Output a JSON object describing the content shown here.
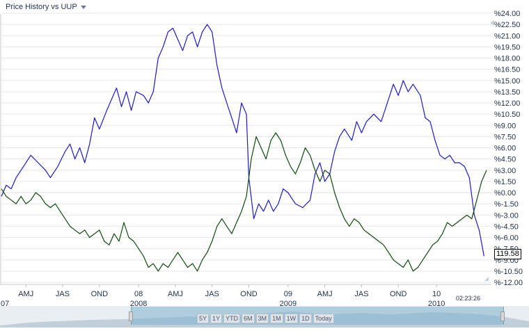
{
  "header": {
    "title": "Price History vs UUP"
  },
  "time_label": "02:23:26",
  "last_price": "119.58",
  "range_buttons": [
    "5Y",
    "1Y",
    "YTD",
    "6M",
    "3M",
    "1M",
    "1W",
    "1D",
    "Today"
  ],
  "colors": {
    "series_primary": "#1a1acc",
    "series_compare": "#0d4a0d",
    "grid": "#e6e6e6",
    "navigator": "#7db4cd"
  },
  "chart_data": {
    "type": "line",
    "title": "Price History vs UUP",
    "xlabel": "",
    "ylabel": "",
    "y_unit": "%",
    "ylim": [
      -12,
      24
    ],
    "y_ticks": [
      "%24.00",
      "%22.50",
      "%21.00",
      "%19.50",
      "%18.00",
      "%16.50",
      "%15.00",
      "%13.50",
      "%12.00",
      "%10.50",
      "%9.00",
      "%7.50",
      "%6.00",
      "%4.50",
      "%3.00",
      "%1.50",
      "%0.00",
      "%-1.50",
      "%-3.00",
      "%-4.50",
      "%-6.00",
      "%-7.50",
      "%-9.00",
      "%-10.50",
      "%-12.00"
    ],
    "x_ticks": [
      {
        "label": "07",
        "row": 2,
        "t": 0.0
      },
      {
        "label": "AMJ",
        "row": 1,
        "t": 0.05
      },
      {
        "label": "JAS",
        "row": 1,
        "t": 0.125
      },
      {
        "label": "OND",
        "row": 1,
        "t": 0.2
      },
      {
        "label": "08",
        "row": 1,
        "t": 0.28
      },
      {
        "label": "2008",
        "row": 2,
        "t": 0.28
      },
      {
        "label": "AMJ",
        "row": 1,
        "t": 0.355
      },
      {
        "label": "JAS",
        "row": 1,
        "t": 0.43
      },
      {
        "label": "OND",
        "row": 1,
        "t": 0.505
      },
      {
        "label": "09",
        "row": 1,
        "t": 0.585
      },
      {
        "label": "2009",
        "row": 2,
        "t": 0.585
      },
      {
        "label": "AMJ",
        "row": 1,
        "t": 0.66
      },
      {
        "label": "JAS",
        "row": 1,
        "t": 0.735
      },
      {
        "label": "OND",
        "row": 1,
        "t": 0.81
      },
      {
        "label": "10",
        "row": 1,
        "t": 0.888
      },
      {
        "label": "2010",
        "row": 2,
        "t": 0.888
      }
    ],
    "series": [
      {
        "color": "#1a1acc",
        "points": [
          [
            0,
            -0.5
          ],
          [
            0.01,
            1.0
          ],
          [
            0.02,
            0.5
          ],
          [
            0.03,
            2.0
          ],
          [
            0.045,
            3.5
          ],
          [
            0.06,
            5.0
          ],
          [
            0.075,
            4.0
          ],
          [
            0.09,
            3.0
          ],
          [
            0.1,
            2.0
          ],
          [
            0.115,
            3.5
          ],
          [
            0.13,
            5.5
          ],
          [
            0.14,
            6.5
          ],
          [
            0.15,
            4.5
          ],
          [
            0.16,
            6.0
          ],
          [
            0.17,
            4.0
          ],
          [
            0.18,
            6.5
          ],
          [
            0.19,
            10.0
          ],
          [
            0.2,
            8.5
          ],
          [
            0.215,
            11.0
          ],
          [
            0.225,
            12.5
          ],
          [
            0.235,
            14.0
          ],
          [
            0.245,
            11.5
          ],
          [
            0.255,
            13.5
          ],
          [
            0.265,
            11.0
          ],
          [
            0.275,
            13.5
          ],
          [
            0.29,
            13.0
          ],
          [
            0.3,
            12.0
          ],
          [
            0.31,
            13.5
          ],
          [
            0.32,
            18.0
          ],
          [
            0.33,
            19.5
          ],
          [
            0.34,
            21.5
          ],
          [
            0.35,
            22.0
          ],
          [
            0.36,
            20.5
          ],
          [
            0.37,
            19.0
          ],
          [
            0.38,
            21.0
          ],
          [
            0.39,
            21.5
          ],
          [
            0.4,
            19.5
          ],
          [
            0.41,
            21.5
          ],
          [
            0.42,
            22.5
          ],
          [
            0.43,
            21.5
          ],
          [
            0.44,
            17.0
          ],
          [
            0.45,
            14.0
          ],
          [
            0.46,
            12.0
          ],
          [
            0.47,
            10.0
          ],
          [
            0.48,
            8.0
          ],
          [
            0.49,
            12.0
          ],
          [
            0.5,
            10.5
          ],
          [
            0.505,
            2.0
          ],
          [
            0.515,
            -3.5
          ],
          [
            0.525,
            -1.5
          ],
          [
            0.535,
            -2.5
          ],
          [
            0.545,
            -1.0
          ],
          [
            0.555,
            -2.5
          ],
          [
            0.565,
            -1.5
          ],
          [
            0.575,
            0.5
          ],
          [
            0.585,
            0.0
          ],
          [
            0.6,
            -1.5
          ],
          [
            0.615,
            -2.0
          ],
          [
            0.63,
            -1.0
          ],
          [
            0.64,
            2.5
          ],
          [
            0.65,
            4.0
          ],
          [
            0.66,
            1.5
          ],
          [
            0.67,
            2.5
          ],
          [
            0.68,
            5.5
          ],
          [
            0.69,
            7.5
          ],
          [
            0.7,
            8.5
          ],
          [
            0.715,
            7.0
          ],
          [
            0.725,
            9.5
          ],
          [
            0.735,
            8.0
          ],
          [
            0.745,
            9.5
          ],
          [
            0.76,
            10.5
          ],
          [
            0.775,
            9.5
          ],
          [
            0.79,
            12.5
          ],
          [
            0.8,
            14.5
          ],
          [
            0.81,
            13.0
          ],
          [
            0.82,
            15.0
          ],
          [
            0.83,
            13.5
          ],
          [
            0.84,
            14.5
          ],
          [
            0.855,
            13.0
          ],
          [
            0.865,
            10.0
          ],
          [
            0.875,
            9.5
          ],
          [
            0.885,
            7.0
          ],
          [
            0.895,
            5.0
          ],
          [
            0.905,
            4.5
          ],
          [
            0.915,
            5.0
          ],
          [
            0.925,
            4.0
          ],
          [
            0.935,
            4.0
          ],
          [
            0.945,
            3.5
          ],
          [
            0.955,
            2.0
          ],
          [
            0.965,
            -3.0
          ],
          [
            0.975,
            -5.0
          ],
          [
            0.985,
            -8.5
          ]
        ]
      },
      {
        "color": "#0d4a0d",
        "points": [
          [
            0,
            0.5
          ],
          [
            0.01,
            -0.5
          ],
          [
            0.02,
            -1.0
          ],
          [
            0.03,
            -1.5
          ],
          [
            0.04,
            -0.5
          ],
          [
            0.05,
            -1.5
          ],
          [
            0.06,
            -1.0
          ],
          [
            0.07,
            0.0
          ],
          [
            0.08,
            -0.5
          ],
          [
            0.09,
            -1.5
          ],
          [
            0.1,
            -2.0
          ],
          [
            0.11,
            -1.5
          ],
          [
            0.12,
            -2.5
          ],
          [
            0.13,
            -3.5
          ],
          [
            0.14,
            -4.5
          ],
          [
            0.15,
            -5.0
          ],
          [
            0.16,
            -5.5
          ],
          [
            0.17,
            -5.0
          ],
          [
            0.18,
            -6.0
          ],
          [
            0.19,
            -5.5
          ],
          [
            0.2,
            -5.0
          ],
          [
            0.21,
            -6.5
          ],
          [
            0.22,
            -7.0
          ],
          [
            0.23,
            -5.5
          ],
          [
            0.24,
            -6.5
          ],
          [
            0.25,
            -4.0
          ],
          [
            0.26,
            -6.0
          ],
          [
            0.27,
            -6.5
          ],
          [
            0.28,
            -7.5
          ],
          [
            0.29,
            -8.5
          ],
          [
            0.3,
            -10.0
          ],
          [
            0.31,
            -9.5
          ],
          [
            0.32,
            -10.5
          ],
          [
            0.33,
            -9.5
          ],
          [
            0.34,
            -10.0
          ],
          [
            0.35,
            -9.0
          ],
          [
            0.36,
            -8.0
          ],
          [
            0.37,
            -9.0
          ],
          [
            0.38,
            -10.0
          ],
          [
            0.39,
            -9.5
          ],
          [
            0.4,
            -10.5
          ],
          [
            0.41,
            -9.0
          ],
          [
            0.42,
            -8.0
          ],
          [
            0.43,
            -6.5
          ],
          [
            0.44,
            -4.5
          ],
          [
            0.45,
            -3.5
          ],
          [
            0.46,
            -4.5
          ],
          [
            0.47,
            -5.5
          ],
          [
            0.48,
            -4.0
          ],
          [
            0.49,
            -2.5
          ],
          [
            0.5,
            -0.5
          ],
          [
            0.51,
            4.5
          ],
          [
            0.52,
            7.5
          ],
          [
            0.53,
            6.0
          ],
          [
            0.54,
            4.5
          ],
          [
            0.55,
            7.0
          ],
          [
            0.56,
            8.0
          ],
          [
            0.57,
            7.0
          ],
          [
            0.58,
            5.0
          ],
          [
            0.59,
            3.5
          ],
          [
            0.6,
            2.5
          ],
          [
            0.61,
            4.0
          ],
          [
            0.62,
            6.0
          ],
          [
            0.63,
            5.0
          ],
          [
            0.64,
            3.0
          ],
          [
            0.65,
            1.5
          ],
          [
            0.66,
            3.0
          ],
          [
            0.67,
            2.5
          ],
          [
            0.68,
            0.0
          ],
          [
            0.69,
            -2.0
          ],
          [
            0.7,
            -3.5
          ],
          [
            0.71,
            -4.5
          ],
          [
            0.72,
            -3.5
          ],
          [
            0.73,
            -4.0
          ],
          [
            0.74,
            -5.0
          ],
          [
            0.75,
            -5.5
          ],
          [
            0.76,
            -6.0
          ],
          [
            0.77,
            -6.5
          ],
          [
            0.78,
            -7.0
          ],
          [
            0.79,
            -8.0
          ],
          [
            0.8,
            -9.0
          ],
          [
            0.81,
            -9.5
          ],
          [
            0.82,
            -10.0
          ],
          [
            0.83,
            -9.0
          ],
          [
            0.84,
            -10.5
          ],
          [
            0.85,
            -10.0
          ],
          [
            0.86,
            -9.0
          ],
          [
            0.87,
            -8.0
          ],
          [
            0.88,
            -7.0
          ],
          [
            0.89,
            -6.5
          ],
          [
            0.9,
            -5.5
          ],
          [
            0.91,
            -4.0
          ],
          [
            0.92,
            -4.5
          ],
          [
            0.93,
            -4.0
          ],
          [
            0.94,
            -3.5
          ],
          [
            0.95,
            -3.0
          ],
          [
            0.96,
            -3.5
          ],
          [
            0.97,
            -1.0
          ],
          [
            0.98,
            1.5
          ],
          [
            0.99,
            3.0
          ]
        ]
      }
    ]
  }
}
